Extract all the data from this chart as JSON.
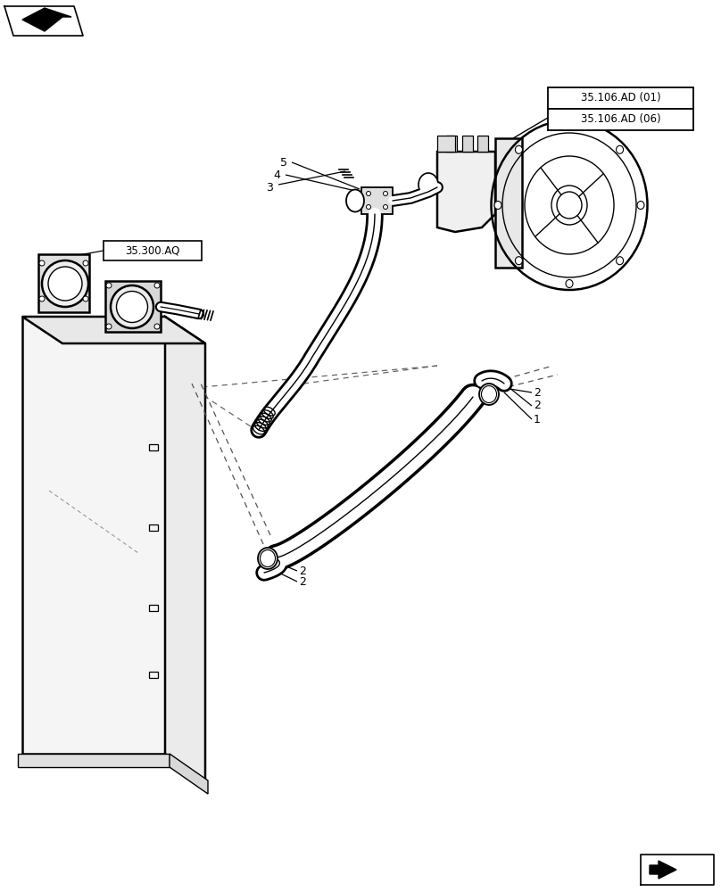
{
  "bg_color": "#ffffff",
  "line_color": "#000000",
  "ref_box1": "35.106.AD (01)",
  "ref_box2": "35.106.AD (06)",
  "ref_box3": "35.300.AQ",
  "lw_main": 1.2,
  "lw_thick": 1.8,
  "lw_pipe": 10,
  "fontsize_label": 9,
  "fontsize_ref": 8.5
}
